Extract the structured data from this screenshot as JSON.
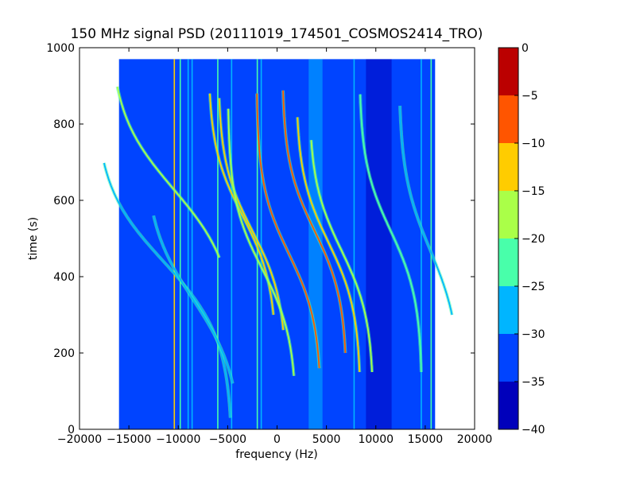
{
  "figure": {
    "title": "150 MHz signal PSD (20111019_174501_COSMOS2414_TRO)"
  },
  "chart_data": {
    "type": "heatmap",
    "title": "150 MHz signal PSD (20111019_174501_COSMOS2414_TRO)",
    "xlabel": "frequency (Hz)",
    "ylabel": "time (s)",
    "xlim": [
      -20000,
      20000
    ],
    "ylim": [
      0,
      1000
    ],
    "xticks": [
      -20000,
      -15000,
      -10000,
      -5000,
      0,
      5000,
      10000,
      15000,
      20000
    ],
    "xtick_labels": [
      "−20000",
      "−15000",
      "−10000",
      "−5000",
      "0",
      "5000",
      "10000",
      "15000",
      "20000"
    ],
    "yticks": [
      0,
      200,
      400,
      600,
      800,
      1000
    ],
    "ytick_labels": [
      "0",
      "200",
      "400",
      "600",
      "800",
      "1000"
    ],
    "data_extent": {
      "x": [
        -16000,
        16000
      ],
      "y": [
        0,
        970
      ]
    },
    "background_level_db": -33,
    "colorbar": {
      "range": [
        -40,
        0
      ],
      "levels": [
        -40,
        -35,
        -30,
        -25,
        -20,
        -15,
        -10,
        -5,
        0
      ],
      "tick_labels": [
        "−40",
        "−35",
        "−30",
        "−25",
        "−20",
        "−15",
        "−10",
        "−5",
        "0"
      ],
      "colors": [
        "#0000bb",
        "#0044ff",
        "#00b5ff",
        "#48ffaa",
        "#aaff48",
        "#ffcc00",
        "#ff5500",
        "#bb0000"
      ]
    },
    "noise_bands": [
      {
        "x_center": 3900,
        "width": 1400,
        "level_db": -28
      },
      {
        "x_center": 10300,
        "width": 2600,
        "level_db": -36
      }
    ],
    "vertical_lines": [
      {
        "x": -10400,
        "level_db": -12
      },
      {
        "x": -9800,
        "level_db": -24
      },
      {
        "x": -9000,
        "level_db": -26
      },
      {
        "x": -8600,
        "level_db": -27
      },
      {
        "x": -6000,
        "level_db": -24
      },
      {
        "x": -4600,
        "level_db": -28
      },
      {
        "x": -2000,
        "level_db": -24
      },
      {
        "x": -1600,
        "level_db": -26
      },
      {
        "x": 7800,
        "level_db": -28
      },
      {
        "x": 14600,
        "level_db": -26
      },
      {
        "x": 15600,
        "level_db": -24
      }
    ],
    "doppler_tracks": [
      {
        "f_offset": -11500,
        "t_center": 440,
        "amplitude": 7000,
        "scale": 200,
        "t_range": [
          30,
          700
        ],
        "level_db": -26
      },
      {
        "f_offset": -10500,
        "t_center": 630,
        "amplitude": 6500,
        "scale": 200,
        "t_range": [
          450,
          900
        ],
        "level_db": -20
      },
      {
        "f_offset": -8500,
        "t_center": 340,
        "amplitude": 5000,
        "scale": 200,
        "t_range": [
          120,
          560
        ],
        "level_db": -28
      },
      {
        "f_offset": -3500,
        "t_center": 560,
        "amplitude": 3500,
        "scale": 180,
        "t_range": [
          300,
          880
        ],
        "level_db": -14
      },
      {
        "f_offset": -2500,
        "t_center": 520,
        "amplitude": 3500,
        "scale": 180,
        "t_range": [
          260,
          870
        ],
        "level_db": -12
      },
      {
        "f_offset": -1500,
        "t_center": 420,
        "amplitude": 3500,
        "scale": 180,
        "t_range": [
          140,
          840
        ],
        "level_db": -16
      },
      {
        "f_offset": 1200,
        "t_center": 460,
        "amplitude": 3300,
        "scale": 180,
        "t_range": [
          160,
          880
        ],
        "level_db": -10
      },
      {
        "f_offset": 3800,
        "t_center": 520,
        "amplitude": 3300,
        "scale": 180,
        "t_range": [
          200,
          890
        ],
        "level_db": -10
      },
      {
        "f_offset": 5200,
        "t_center": 490,
        "amplitude": 3300,
        "scale": 180,
        "t_range": [
          150,
          820
        ],
        "level_db": -12
      },
      {
        "f_offset": 6500,
        "t_center": 470,
        "amplitude": 3300,
        "scale": 180,
        "t_range": [
          150,
          760
        ],
        "level_db": -16
      },
      {
        "f_offset": 11500,
        "t_center": 520,
        "amplitude": 3200,
        "scale": 180,
        "t_range": [
          150,
          880
        ],
        "level_db": -24
      },
      {
        "f_offset": 15500,
        "t_center": 470,
        "amplitude": 3200,
        "scale": 200,
        "t_range": [
          300,
          850
        ],
        "level_db": -26
      }
    ]
  }
}
